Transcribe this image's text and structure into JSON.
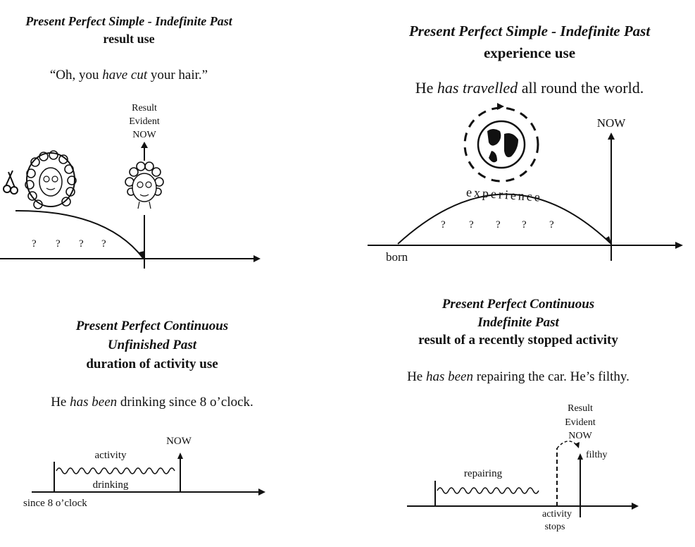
{
  "panels": {
    "result_use": {
      "title": "Present Perfect Simple - Indefinite Past",
      "subtitle": "result use",
      "sentence_pre": "“Oh, you ",
      "sentence_verb": "have cut",
      "sentence_post": " your hair.”",
      "result_label_1": "Result",
      "result_label_2": "Evident",
      "result_label_3": "NOW",
      "question_marks": [
        "?",
        "?",
        "?",
        "?"
      ]
    },
    "experience_use": {
      "title": "Present Perfect Simple - Indefinite Past",
      "subtitle": "experience use",
      "sentence_pre": "He ",
      "sentence_verb": "has travelled",
      "sentence_post": " all round the world.",
      "now_label": "NOW",
      "arc_label": "experience",
      "born_label": "born",
      "question_marks": [
        "?",
        "?",
        "?",
        "?",
        "?"
      ]
    },
    "duration_use": {
      "title_1": "Present Perfect Continuous",
      "title_2": "Unfinished Past",
      "subtitle": "duration of activity use",
      "sentence_pre": "He ",
      "sentence_verb": "has been",
      "sentence_post": " drinking since 8 o’clock.",
      "now_label": "NOW",
      "activity_label": "activity",
      "drinking_label": "drinking",
      "since_label": "since 8 o’clock"
    },
    "stopped_activity_use": {
      "title_1": "Present Perfect Continuous",
      "title_2": "Indefinite Past",
      "subtitle": "result of a recently stopped activity",
      "sentence_pre": "He ",
      "sentence_verb": "has been",
      "sentence_post": " repairing the car. He’s filthy.",
      "result_label_1": "Result",
      "result_label_2": "Evident",
      "result_label_3": "NOW",
      "filthy_label": "filthy",
      "repairing_label": "repairing",
      "stops_label_1": "activity",
      "stops_label_2": "stops"
    }
  }
}
